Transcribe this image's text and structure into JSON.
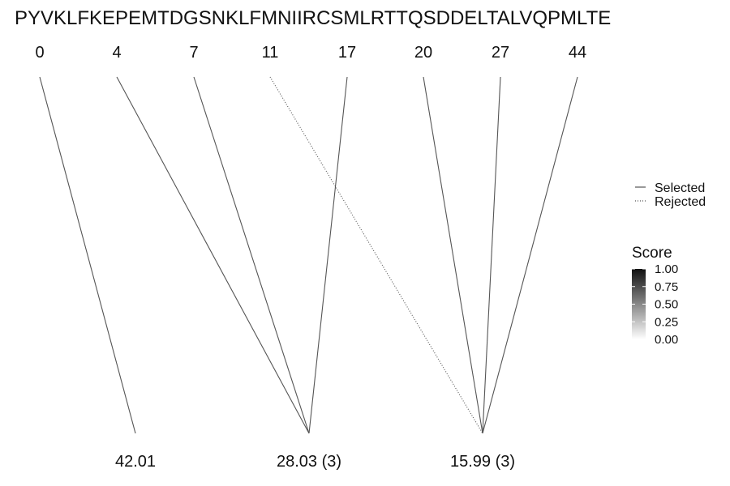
{
  "sequence": "PYVKLFKEPEMTDGSNKLFMNIIRCSMLRTTQSDDELTALVQPMLTE",
  "top_positions": [
    "0",
    "4",
    "7",
    "11",
    "17",
    "20",
    "27",
    "44"
  ],
  "bottom_nodes": [
    "42.01",
    "28.03 (3)",
    "15.99 (3)"
  ],
  "links": [
    {
      "from": 0,
      "to": 0,
      "status": "selected"
    },
    {
      "from": 1,
      "to": 1,
      "status": "selected"
    },
    {
      "from": 2,
      "to": 1,
      "status": "selected"
    },
    {
      "from": 4,
      "to": 1,
      "status": "selected"
    },
    {
      "from": 3,
      "to": 2,
      "status": "rejected"
    },
    {
      "from": 5,
      "to": 2,
      "status": "selected"
    },
    {
      "from": 6,
      "to": 2,
      "status": "selected"
    },
    {
      "from": 7,
      "to": 2,
      "status": "selected"
    }
  ],
  "legend": {
    "linetype_items": [
      {
        "label": "Selected",
        "style": "solid"
      },
      {
        "label": "Rejected",
        "style": "dotted"
      }
    ],
    "score": {
      "title": "Score",
      "ticks": [
        "1.00",
        "0.75",
        "0.50",
        "0.25",
        "0.00"
      ],
      "color_high": "#111111",
      "color_low": "#ffffff"
    }
  },
  "colors": {
    "line": "#555555"
  }
}
